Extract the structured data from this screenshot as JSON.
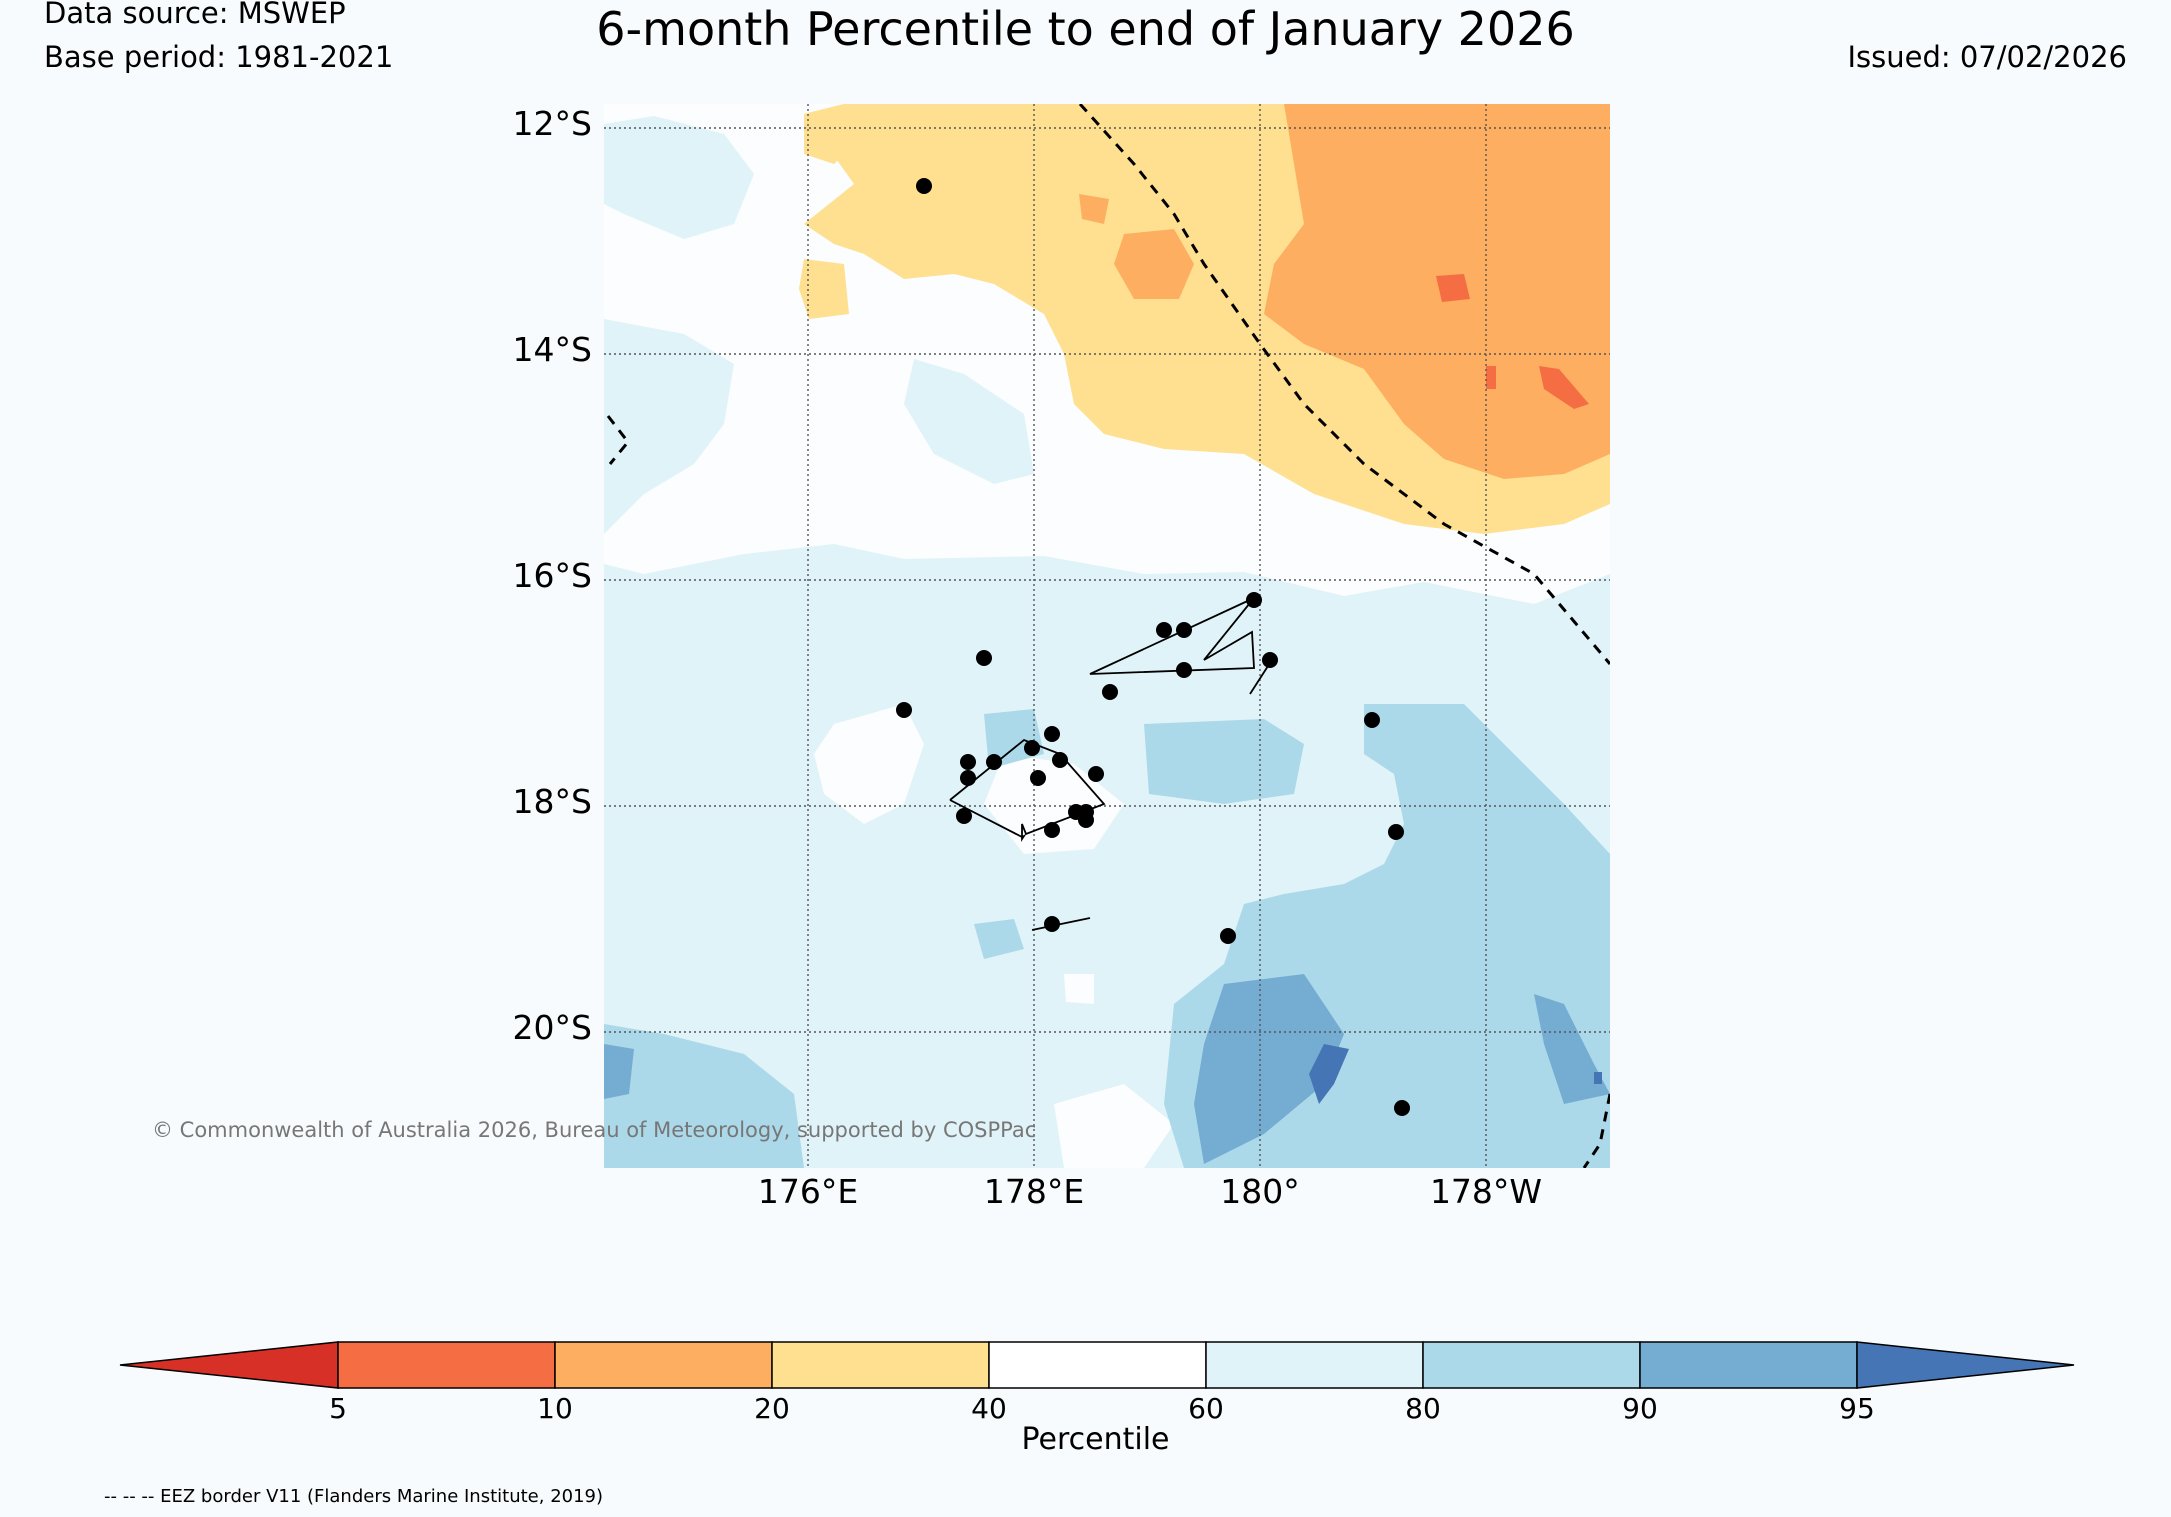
{
  "header": {
    "data_source": "Data source: MSWEP",
    "base_period": "Base period: 1981-2021",
    "title": "6-month Percentile to end of January 2026",
    "issued": "Issued: 07/02/2026"
  },
  "map": {
    "lat_labels": [
      "12°S",
      "14°S",
      "16°S",
      "18°S",
      "20°S"
    ],
    "lon_labels": [
      "176°E",
      "178°E",
      "180°",
      "178°W"
    ],
    "copyright": "© Commonwealth of Australia 2026, Bureau of Meteorology, supported by COSPPac",
    "categories": [
      {
        "range": "<5",
        "color": "#d73027"
      },
      {
        "range": "5-10",
        "color": "#f46d43"
      },
      {
        "range": "10-20",
        "color": "#fdae61"
      },
      {
        "range": "20-40",
        "color": "#fee090"
      },
      {
        "range": "40-60",
        "color": "#ffffff"
      },
      {
        "range": "60-80",
        "color": "#e0f3f8"
      },
      {
        "range": "80-90",
        "color": "#abd9e9"
      },
      {
        "range": "90-95",
        "color": "#74add1"
      },
      {
        "range": ">95",
        "color": "#4575b4"
      }
    ]
  },
  "colorbar": {
    "ticks": [
      "5",
      "10",
      "20",
      "40",
      "60",
      "80",
      "90",
      "95"
    ],
    "label": "Percentile"
  },
  "footnote": "-- -- -- EEZ border V11 (Flanders Marine Institute, 2019)"
}
